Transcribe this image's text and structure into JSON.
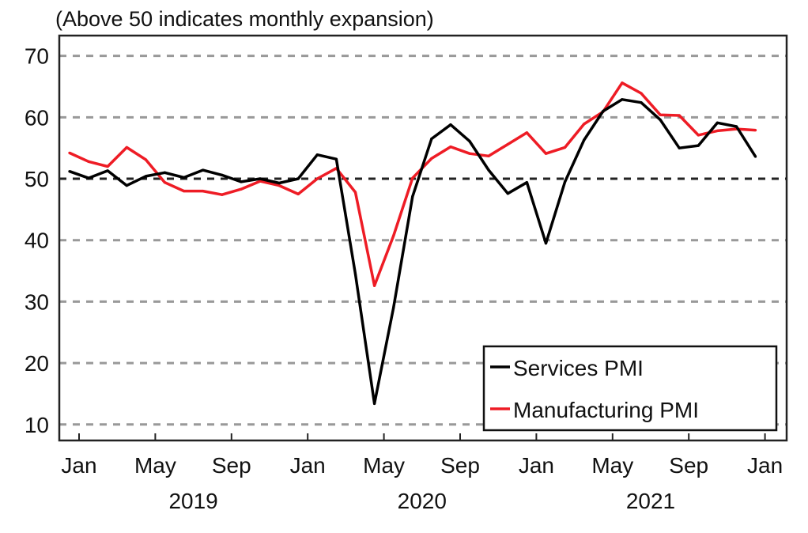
{
  "chart_data": {
    "type": "line",
    "title": "(Above 50 indicates monthly expansion)",
    "xlabel": "",
    "ylabel": "",
    "ylim": [
      7.4,
      73.3
    ],
    "yticks": [
      10,
      20,
      30,
      40,
      50,
      60,
      70
    ],
    "grid": true,
    "reference_line": 50,
    "legend_position": "bottom-right",
    "x_months": [
      "Dec 2018",
      "Jan 2019",
      "Feb 2019",
      "Mar 2019",
      "Apr 2019",
      "May 2019",
      "Jun 2019",
      "Jul 2019",
      "Aug 2019",
      "Sep 2019",
      "Oct 2019",
      "Nov 2019",
      "Dec 2019",
      "Jan 2020",
      "Feb 2020",
      "Mar 2020",
      "Apr 2020",
      "May 2020",
      "Jun 2020",
      "Jul 2020",
      "Aug 2020",
      "Sep 2020",
      "Oct 2020",
      "Nov 2020",
      "Dec 2020",
      "Jan 2021",
      "Feb 2021",
      "Mar 2021",
      "Apr 2021",
      "May 2021",
      "Jun 2021",
      "Jul 2021",
      "Aug 2021",
      "Sep 2021",
      "Oct 2021",
      "Nov 2021",
      "Dec 2021"
    ],
    "x_start_month_index": -1,
    "xticks": [
      {
        "label": "Jan",
        "month_index": 0
      },
      {
        "label": "May",
        "month_index": 4
      },
      {
        "label": "Sep",
        "month_index": 8
      },
      {
        "label": "Jan",
        "month_index": 12
      },
      {
        "label": "May",
        "month_index": 16
      },
      {
        "label": "Sep",
        "month_index": 20
      },
      {
        "label": "Jan",
        "month_index": 24
      },
      {
        "label": "May",
        "month_index": 28
      },
      {
        "label": "Sep",
        "month_index": 32
      },
      {
        "label": "Jan",
        "month_index": 36
      }
    ],
    "year_labels": [
      {
        "label": "2019",
        "month_index": 6
      },
      {
        "label": "2020",
        "month_index": 18
      },
      {
        "label": "2021",
        "month_index": 30
      }
    ],
    "series": [
      {
        "name": "Services PMI",
        "color": "#000000",
        "values": [
          51.2,
          50.1,
          51.3,
          48.9,
          50.4,
          51.0,
          50.2,
          51.4,
          50.6,
          49.5,
          50.0,
          49.3,
          50.0,
          53.9,
          53.2,
          34.5,
          13.4,
          29.0,
          47.1,
          56.5,
          58.8,
          56.1,
          51.4,
          47.6,
          49.4,
          39.5,
          49.5,
          56.3,
          61.0,
          62.9,
          62.4,
          59.6,
          55.0,
          55.4,
          59.1,
          58.5,
          53.6
        ]
      },
      {
        "name": "Manufacturing PMI",
        "color": "#ee1c25",
        "values": [
          54.2,
          52.8,
          52.0,
          55.1,
          53.1,
          49.4,
          48.0,
          48.0,
          47.4,
          48.3,
          49.6,
          48.9,
          47.5,
          50.0,
          51.7,
          47.8,
          32.6,
          40.7,
          50.1,
          53.3,
          55.2,
          54.1,
          53.7,
          55.6,
          57.5,
          54.1,
          55.1,
          58.9,
          60.9,
          65.6,
          63.9,
          60.4,
          60.3,
          57.1,
          57.8,
          58.1,
          57.9
        ]
      }
    ]
  }
}
